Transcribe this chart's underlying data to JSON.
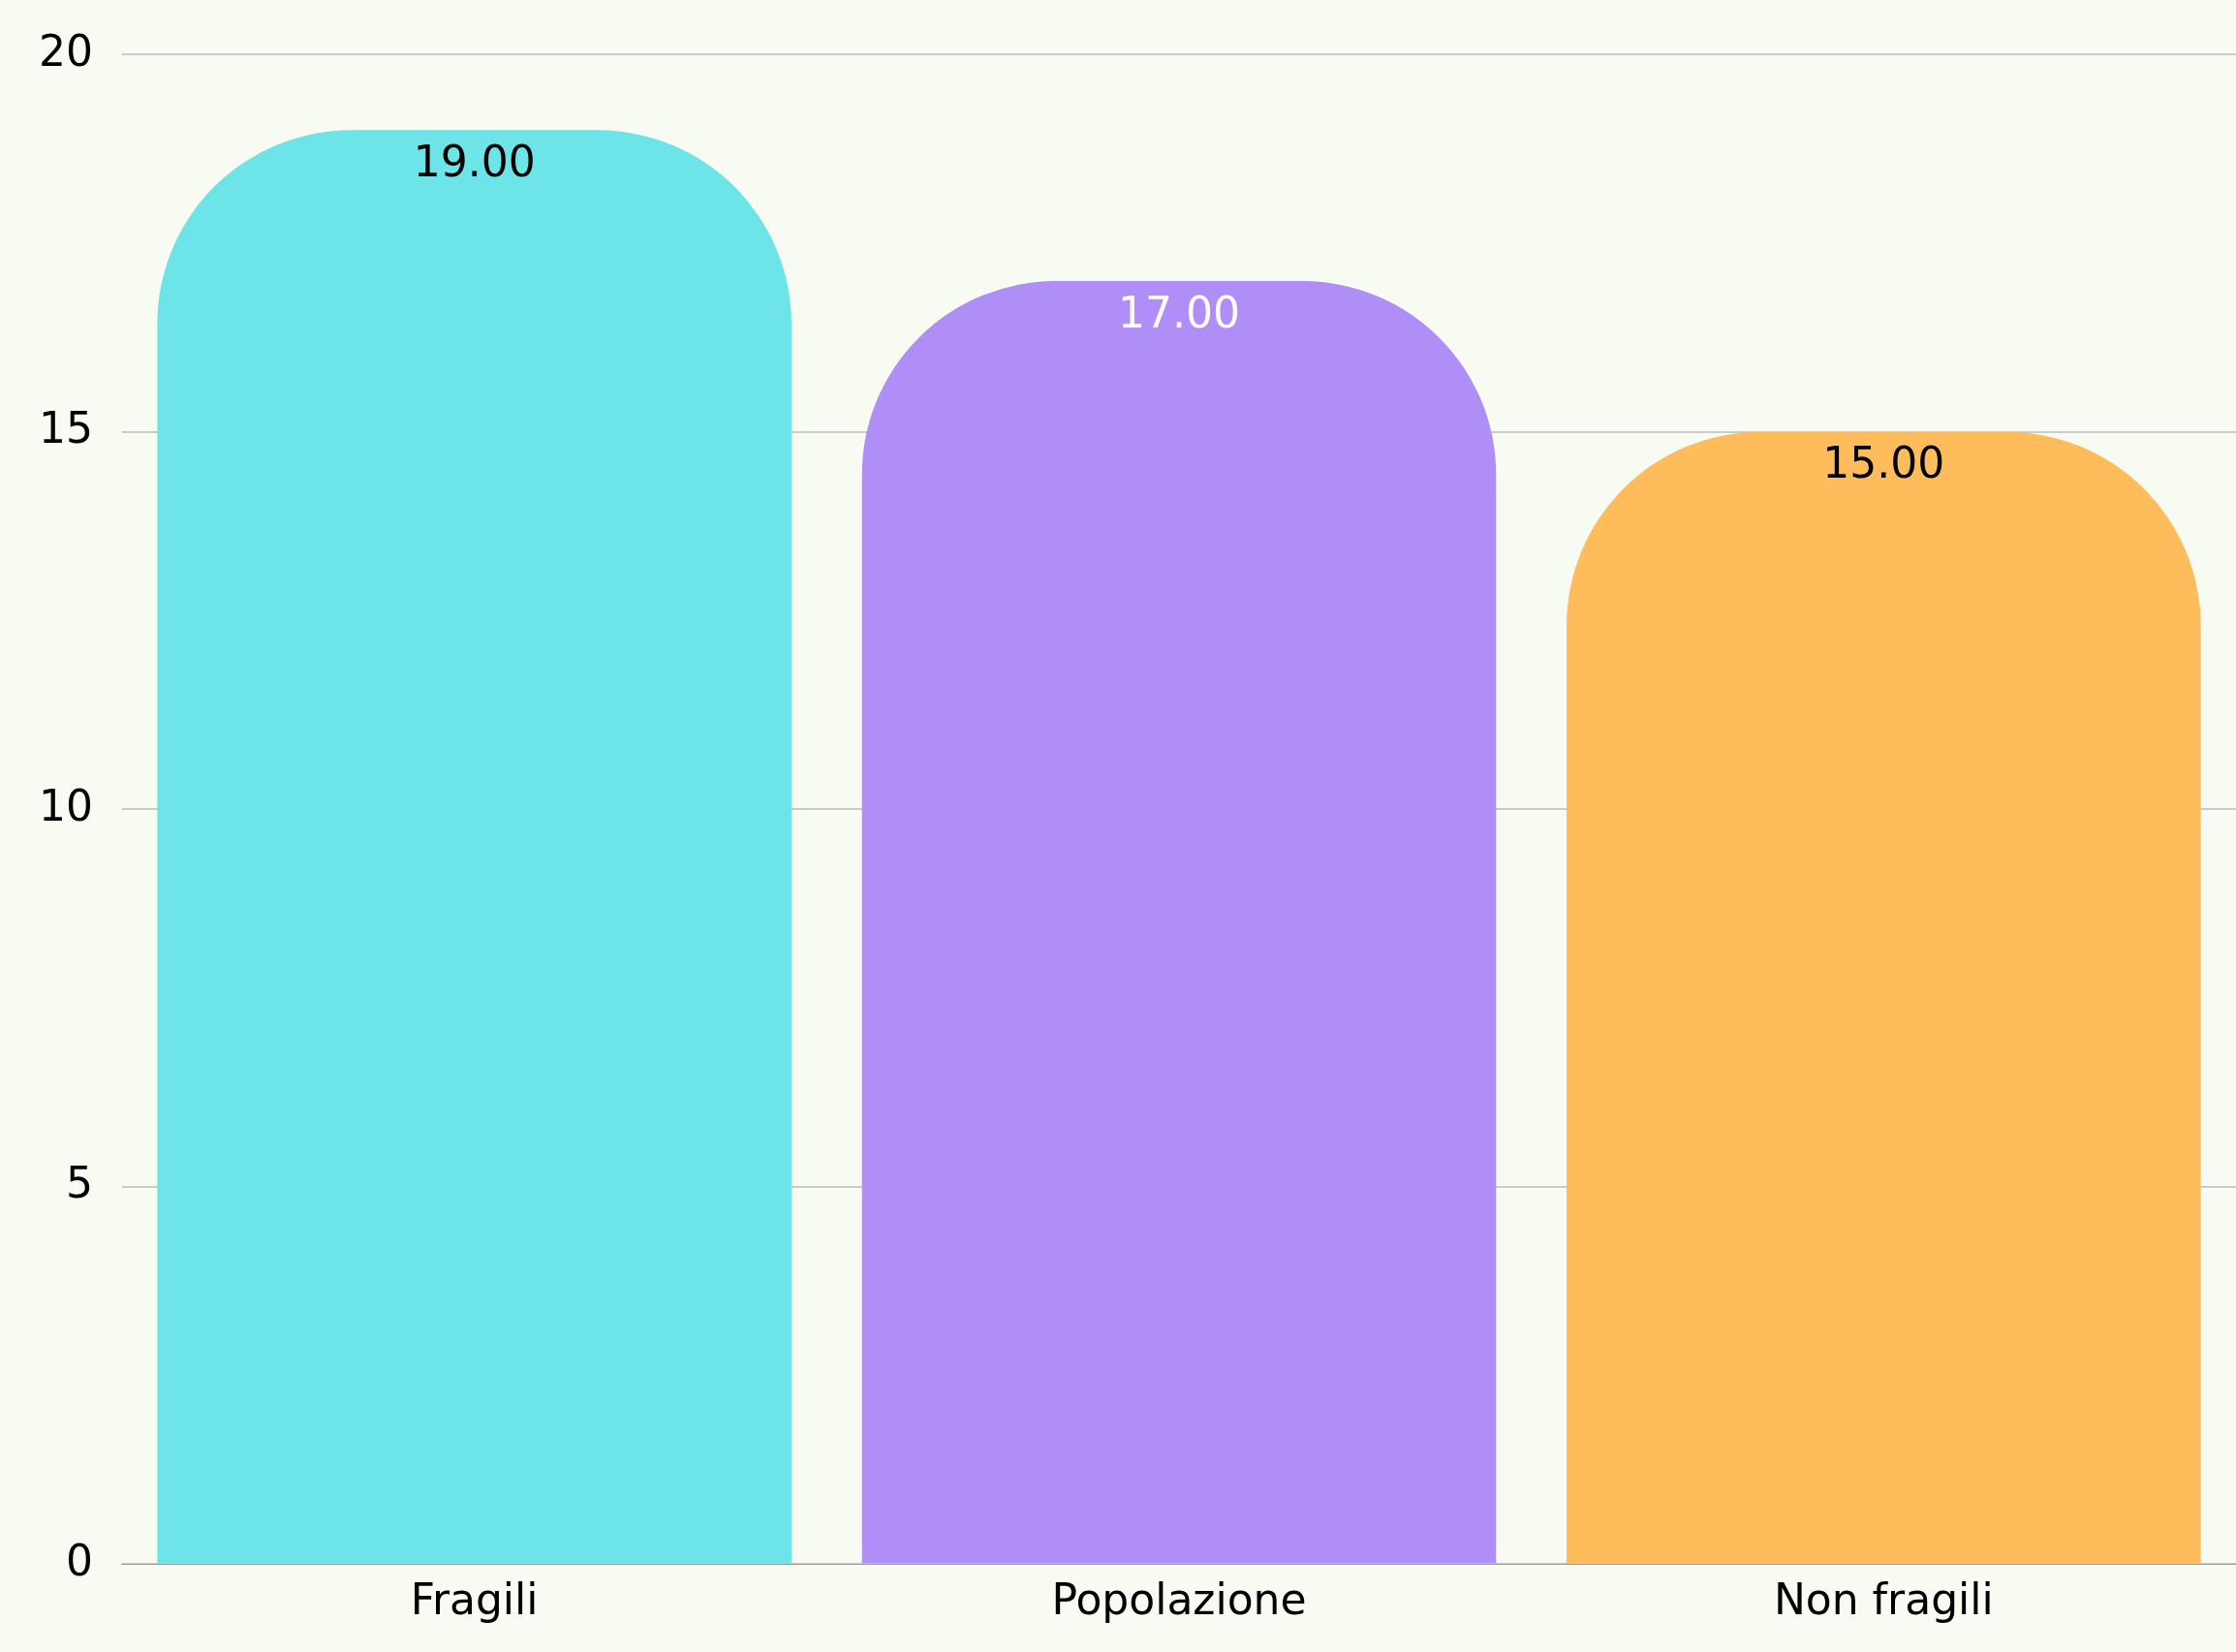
{
  "chart_data": {
    "type": "bar",
    "categories": [
      "Fragili",
      "Popolazione",
      "Non fragili"
    ],
    "values": [
      19,
      17,
      15
    ],
    "colors": [
      "#6ce4e8",
      "#b08ef7",
      "#ffbc5a"
    ],
    "value_labels": [
      "19.00",
      "17.00",
      "15.00"
    ],
    "ylim": [
      0,
      20
    ],
    "yticks": [
      0,
      5,
      10,
      15,
      20
    ],
    "grid": "y",
    "legend": false
  }
}
